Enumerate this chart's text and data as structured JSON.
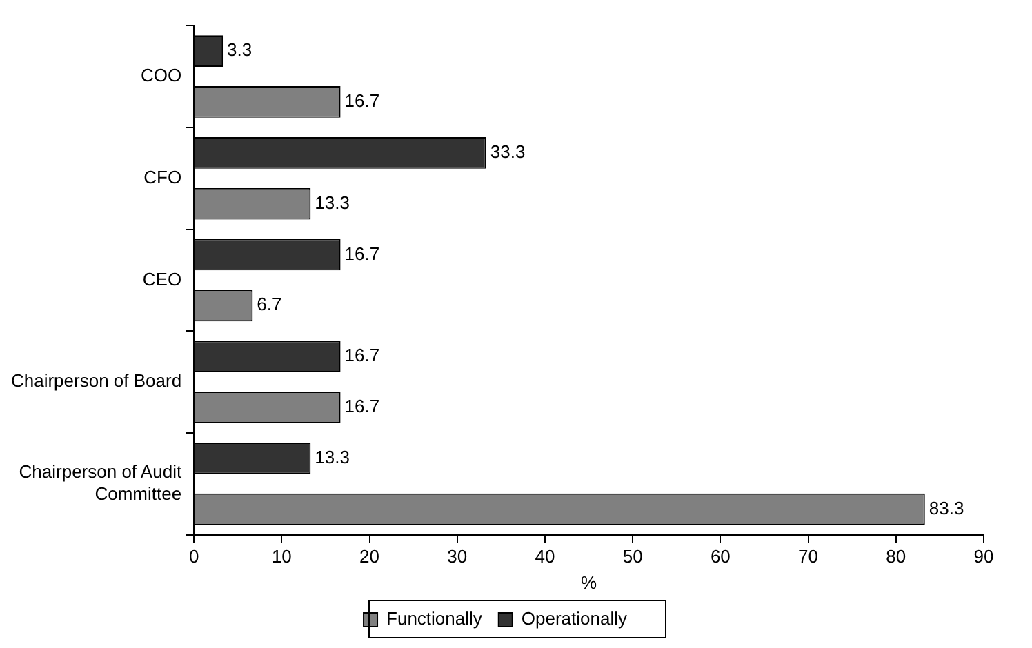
{
  "chart_data": {
    "type": "bar",
    "orientation": "horizontal",
    "xlabel": "%",
    "categories": [
      "COO",
      "CFO",
      "CEO",
      "Chairperson of Board",
      "Chairperson of Audit Committee"
    ],
    "series": [
      {
        "name": "Functionally",
        "color": "#808080",
        "values": [
          16.7,
          13.3,
          6.7,
          16.7,
          83.3
        ]
      },
      {
        "name": "Operationally",
        "color": "#333333",
        "values": [
          3.3,
          33.3,
          16.7,
          16.7,
          13.3
        ]
      }
    ],
    "xlim": [
      0,
      90
    ],
    "xticks": [
      0,
      10,
      20,
      30,
      40,
      50,
      60,
      70,
      80,
      90
    ],
    "data_labels": true,
    "legend": "bottom"
  }
}
